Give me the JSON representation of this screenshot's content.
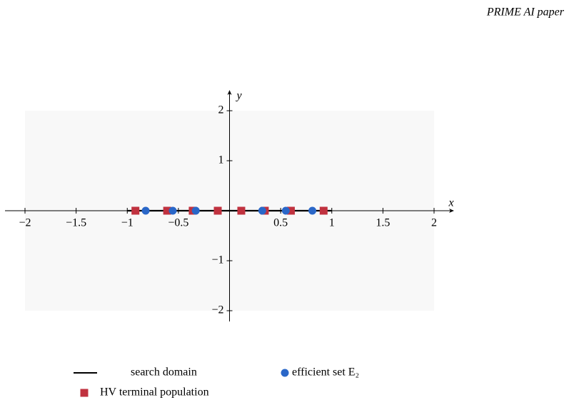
{
  "header": "PRIME AI paper",
  "chart_data": {
    "type": "scatter",
    "xlabel": "x",
    "ylabel": "y",
    "xlim": [
      -2,
      2
    ],
    "ylim": [
      -2,
      2
    ],
    "xticks": [
      {
        "value": -2,
        "label": "−2"
      },
      {
        "value": -1.5,
        "label": "−1.5"
      },
      {
        "value": -1,
        "label": "−1"
      },
      {
        "value": -0.5,
        "label": "−0.5"
      },
      0.5,
      1,
      1.5,
      2
    ],
    "yticks": [
      {
        "value": -2,
        "label": "−2"
      },
      {
        "value": -1,
        "label": "−1"
      },
      1,
      2
    ],
    "series": [
      {
        "name": "search domain",
        "type": "line",
        "color": "#000000",
        "x": [
          -1,
          1
        ],
        "values": [
          0,
          0
        ]
      },
      {
        "name": "efficient set E₂",
        "type": "circle",
        "color": "#2a67c8",
        "x": [
          -0.82,
          -0.555,
          -0.33,
          0.32,
          0.55,
          0.81
        ],
        "values": [
          0,
          0,
          0,
          0,
          0,
          0
        ]
      },
      {
        "name": "HV terminal population",
        "type": "square",
        "color": "#c0323f",
        "x": [
          -0.92,
          -0.61,
          -0.36,
          -0.115,
          0.115,
          0.345,
          0.6,
          0.92
        ],
        "values": [
          0,
          0,
          0,
          0,
          0,
          0,
          0,
          0
        ]
      }
    ]
  }
}
